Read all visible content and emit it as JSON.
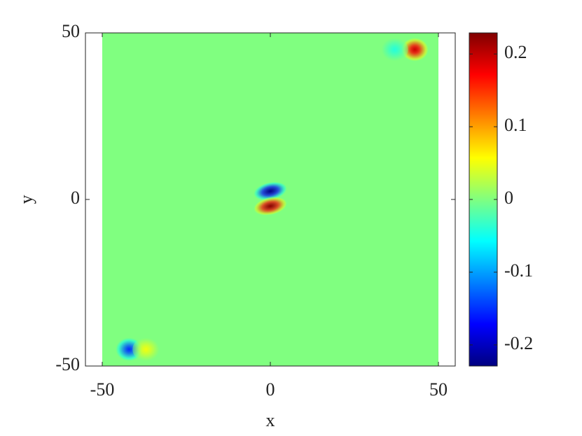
{
  "chart_data": {
    "type": "heatmap",
    "xlabel": "x",
    "ylabel": "y",
    "xlim": [
      -55,
      55
    ],
    "ylim": [
      -50,
      50
    ],
    "xticks": [
      -50,
      0,
      50
    ],
    "yticks": [
      -50,
      0,
      50
    ],
    "field_xlim": [
      -50,
      50
    ],
    "background_value": 0,
    "blobs": [
      {
        "x": 0,
        "y": 2.5,
        "value": -0.22
      },
      {
        "x": 0,
        "y": -2,
        "value": 0.22
      },
      {
        "x": 43,
        "y": 45,
        "value": 0.19
      },
      {
        "x": 37,
        "y": 45,
        "value": -0.04
      },
      {
        "x": -42,
        "y": -45,
        "value": -0.15
      },
      {
        "x": -37,
        "y": -45,
        "value": 0.05
      }
    ],
    "colorbar": {
      "colormap": "jet",
      "clim": [
        -0.229,
        0.229
      ],
      "ticks": [
        -0.2,
        -0.1,
        0,
        0.1,
        0.2
      ]
    }
  }
}
